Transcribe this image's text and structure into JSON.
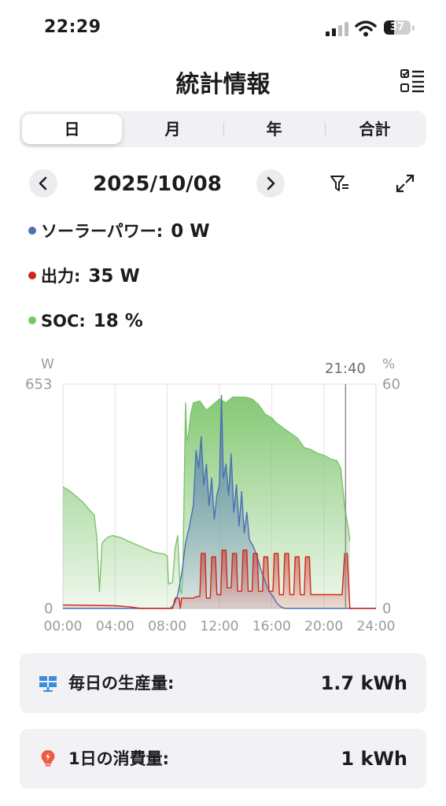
{
  "status_bar": {
    "time": "22:29",
    "battery_level": "37",
    "battery_fraction": 0.37
  },
  "header": {
    "title": "統計情報"
  },
  "tabs": [
    {
      "label": "日",
      "active": true
    },
    {
      "label": "月",
      "active": false
    },
    {
      "label": "年",
      "active": false
    },
    {
      "label": "合計",
      "active": false
    }
  ],
  "date_nav": {
    "date": "2025/10/08"
  },
  "legend": [
    {
      "label": "ソーラーパワー:",
      "value": "0 W",
      "color": "#4a6fb5"
    },
    {
      "label": "出力:",
      "value": "35 W",
      "color": "#d0271d"
    },
    {
      "label": "SOC:",
      "value": "18 %",
      "color": "#7cc46a"
    }
  ],
  "chart_data": {
    "type": "area",
    "left_unit": "W",
    "right_unit": "%",
    "left_axis": {
      "min_label": "0",
      "max_label": "653",
      "ylim": [
        0,
        653
      ]
    },
    "right_axis": {
      "min_label": "0",
      "max_label": "60",
      "ylim": [
        0,
        60
      ]
    },
    "xlim": [
      0,
      24
    ],
    "x_ticks": [
      "00:00",
      "04:00",
      "08:00",
      "12:00",
      "16:00",
      "20:00",
      "24:00"
    ],
    "cursor_label": "21:40",
    "cursor_x": 21.67,
    "colors": {
      "solar": "#4a6fb5",
      "output": "#d0271d",
      "soc": "#7cc46a"
    },
    "series": [
      {
        "name": "SOC",
        "axis": "right",
        "x": [
          0,
          0.5,
          1.0,
          1.5,
          2.0,
          2.4,
          2.6,
          2.8,
          3.0,
          3.4,
          3.8,
          4.4,
          5.0,
          6.0,
          7.0,
          7.8,
          8.0,
          8.1,
          8.4,
          8.6,
          8.8,
          9.0,
          9.1,
          9.2,
          9.4,
          9.5,
          9.6,
          9.8,
          10.0,
          10.5,
          11.0,
          11.5,
          12.0,
          12.5,
          13.0,
          13.5,
          14.0,
          14.5,
          15.0,
          15.5,
          16.0,
          16.4,
          16.8,
          17.2,
          17.6,
          18.0,
          18.5,
          19.0,
          19.5,
          20.0,
          20.5,
          21.0,
          21.3,
          21.6,
          21.9,
          22.0
        ],
        "values": [
          32.5,
          31.5,
          30.0,
          28.5,
          26.5,
          25.0,
          19.0,
          4.5,
          17.5,
          19.0,
          19.5,
          19.0,
          18.0,
          16.5,
          15.0,
          14.5,
          14.0,
          6.5,
          7.0,
          16.0,
          19.5,
          4.5,
          4.0,
          11.0,
          55.0,
          45.0,
          46.0,
          52.0,
          55.0,
          55.5,
          53.0,
          54.5,
          56.0,
          55.0,
          56.5,
          56.5,
          56.5,
          56.0,
          54.5,
          52.0,
          51.0,
          49.5,
          48.5,
          47.5,
          46.5,
          45.5,
          43.0,
          42.5,
          41.5,
          41.0,
          40.0,
          39.5,
          37.5,
          27.0,
          21.0,
          18.0
        ]
      },
      {
        "name": "ソーラーパワー",
        "axis": "left",
        "x": [
          0,
          8.2,
          8.5,
          8.8,
          9.1,
          9.4,
          9.7,
          10.0,
          10.2,
          10.4,
          10.6,
          10.8,
          11.0,
          11.2,
          11.4,
          11.6,
          11.8,
          12.0,
          12.15,
          12.3,
          12.5,
          12.7,
          12.9,
          13.1,
          13.3,
          13.5,
          13.7,
          13.9,
          14.1,
          14.3,
          14.6,
          14.9,
          15.2,
          15.5,
          15.8,
          16.1,
          16.4,
          16.7,
          17.0,
          17.5,
          24
        ],
        "values": [
          0,
          0,
          10,
          40,
          100,
          190,
          240,
          300,
          460,
          410,
          500,
          360,
          420,
          300,
          380,
          260,
          330,
          360,
          620,
          380,
          420,
          330,
          450,
          280,
          360,
          240,
          340,
          220,
          280,
          200,
          180,
          150,
          110,
          80,
          50,
          35,
          15,
          5,
          0,
          0,
          0
        ]
      },
      {
        "name": "出力",
        "axis": "left",
        "x": [
          0,
          4.0,
          5.0,
          6.0,
          7.0,
          8.0,
          8.4,
          8.6,
          8.9,
          9.0,
          9.1,
          9.5,
          9.7,
          10.0,
          10.3,
          10.5,
          10.6,
          10.9,
          11.0,
          11.3,
          11.4,
          11.7,
          11.8,
          12.1,
          12.2,
          12.5,
          12.6,
          12.9,
          13.0,
          13.3,
          13.4,
          13.7,
          13.8,
          14.1,
          14.2,
          14.5,
          14.6,
          14.9,
          15.0,
          15.3,
          15.4,
          15.7,
          15.8,
          16.1,
          16.2,
          16.5,
          16.6,
          16.9,
          17.0,
          17.3,
          17.4,
          17.7,
          17.8,
          18.1,
          18.2,
          18.5,
          18.6,
          18.9,
          19.0,
          20.0,
          20.5,
          21.0,
          21.2,
          21.4,
          21.6,
          21.8,
          22.0,
          24.0
        ],
        "values": [
          10,
          8,
          5,
          0,
          0,
          0,
          0,
          30,
          30,
          0,
          30,
          30,
          30,
          30,
          35,
          35,
          160,
          160,
          30,
          30,
          150,
          150,
          40,
          40,
          170,
          170,
          60,
          60,
          160,
          160,
          50,
          50,
          170,
          170,
          50,
          50,
          160,
          160,
          50,
          50,
          150,
          150,
          50,
          50,
          160,
          160,
          40,
          40,
          160,
          160,
          40,
          40,
          150,
          150,
          40,
          40,
          150,
          150,
          40,
          40,
          40,
          40,
          40,
          40,
          160,
          160,
          0,
          0
        ]
      }
    ]
  },
  "summary": [
    {
      "label": "毎日の生産量:",
      "value": "1.7 kWh",
      "icon": "solar-panel-icon"
    },
    {
      "label": "1日の消費量:",
      "value": "1 kWh",
      "icon": "lightbulb-icon"
    }
  ]
}
